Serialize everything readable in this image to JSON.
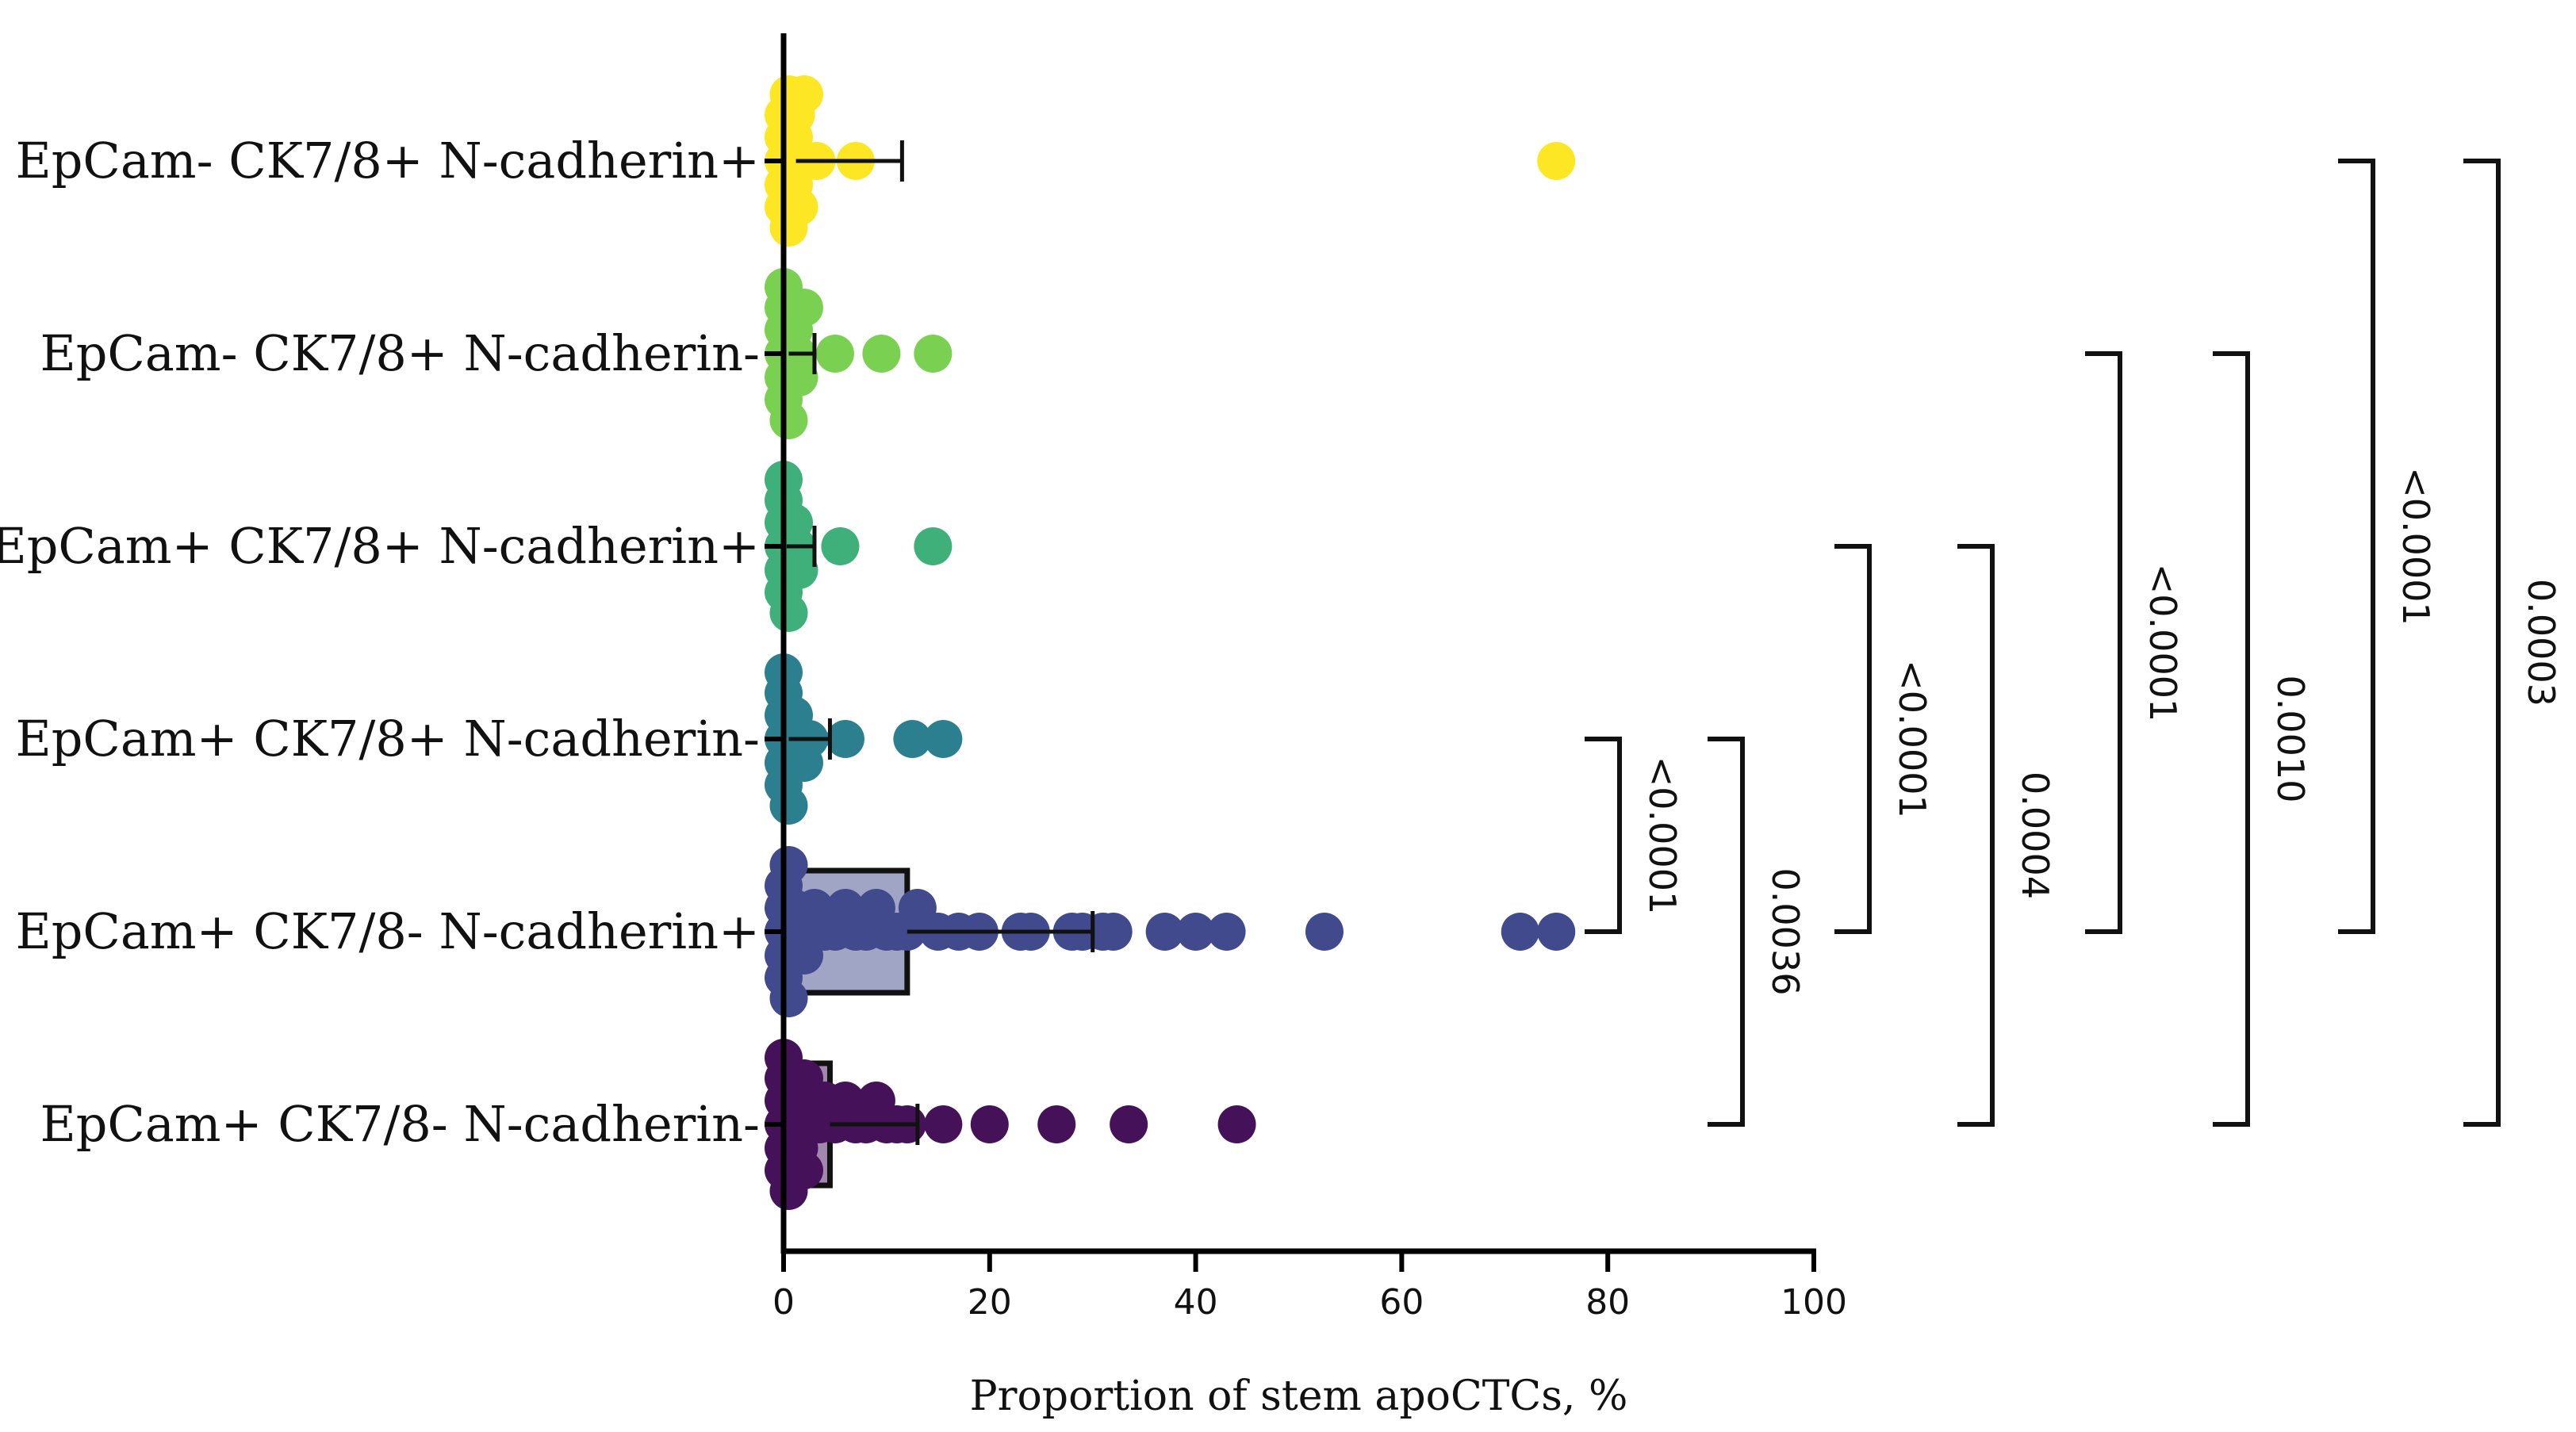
{
  "chart_data": {
    "type": "bar",
    "orientation": "horizontal",
    "xlabel": "Proportion of stem apoCTCs, %",
    "xlim": [
      0,
      100
    ],
    "xticks": [
      0,
      20,
      40,
      60,
      80,
      100
    ],
    "categories": [
      "EpCam- CK7/8+ N-cadherin+",
      "EpCam- CK7/8+ N-cadherin-",
      "EpCam+ CK7/8+ N-cadherin+",
      "EpCam+ CK7/8+ N-cadherin-",
      "EpCam+ CK7/8- N-cadherin+",
      "EpCam+ CK7/8- N-cadherin-"
    ],
    "colors": [
      "#FDE725",
      "#7AD151",
      "#3FB07A",
      "#2C7F8E",
      "#414A8C",
      "#45125A"
    ],
    "series": [
      {
        "name": "EpCam- CK7/8+ N-cadherin+",
        "mean": 1.2,
        "error": 11.5,
        "points": [
          0,
          0,
          0,
          0,
          0,
          0.5,
          0.5,
          0.8,
          1,
          1,
          1.2,
          1.5,
          2,
          3.2,
          7,
          75
        ]
      },
      {
        "name": "EpCam- CK7/8+ N-cadherin-",
        "mean": 0.5,
        "error": 3,
        "points": [
          0,
          0,
          0,
          0,
          0,
          0,
          0.5,
          0.5,
          1,
          1,
          1.5,
          2,
          5,
          9.5,
          14.5
        ]
      },
      {
        "name": "EpCam+ CK7/8+ N-cadherin+",
        "mean": 0.3,
        "error": 3,
        "points": [
          0,
          0,
          0,
          0,
          0,
          0,
          0.5,
          0.5,
          1,
          1,
          1.5,
          5.5,
          14.5
        ]
      },
      {
        "name": "EpCam+ CK7/8+ N-cadherin-",
        "mean": 0.5,
        "error": 4.5,
        "points": [
          0,
          0,
          0,
          0,
          0,
          0,
          0.5,
          0.5,
          1,
          1,
          2,
          2.5,
          6,
          12.5,
          15.5
        ]
      },
      {
        "name": "EpCam+ CK7/8- N-cadherin+",
        "mean": 12,
        "error": 30,
        "points": [
          0,
          0,
          0,
          0,
          0,
          0.5,
          0.5,
          1,
          1,
          2,
          3,
          3,
          4,
          5,
          6,
          7,
          8,
          9,
          10,
          11,
          12,
          13,
          15,
          17,
          19,
          23,
          24,
          28,
          29,
          31,
          32,
          37,
          40,
          43,
          52.5,
          71.5,
          75
        ]
      },
      {
        "name": "EpCam+ CK7/8- N-cadherin-",
        "mean": 4.5,
        "error": 13,
        "points": [
          0,
          0,
          0,
          0,
          0,
          0,
          0.5,
          0.5,
          1,
          1,
          1.5,
          2,
          2,
          2.5,
          3,
          3.5,
          4,
          5,
          6,
          7,
          8,
          9,
          10,
          11,
          12,
          15.5,
          20,
          26.5,
          33.5,
          44
        ]
      }
    ],
    "comparisons": [
      {
        "from": "EpCam+ CK7/8+ N-cadherin-",
        "to": "EpCam+ CK7/8- N-cadherin+",
        "p": "<0.0001"
      },
      {
        "from": "EpCam+ CK7/8+ N-cadherin-",
        "to": "EpCam+ CK7/8- N-cadherin-",
        "p": "0.0036"
      },
      {
        "from": "EpCam+ CK7/8+ N-cadherin+",
        "to": "EpCam+ CK7/8- N-cadherin+",
        "p": "<0.0001"
      },
      {
        "from": "EpCam+ CK7/8+ N-cadherin+",
        "to": "EpCam+ CK7/8- N-cadherin-",
        "p": "0.0004"
      },
      {
        "from": "EpCam- CK7/8+ N-cadherin-",
        "to": "EpCam+ CK7/8- N-cadherin+",
        "p": "<0.0001"
      },
      {
        "from": "EpCam- CK7/8+ N-cadherin-",
        "to": "EpCam+ CK7/8- N-cadherin-",
        "p": "0.0010"
      },
      {
        "from": "EpCam- CK7/8+ N-cadherin+",
        "to": "EpCam+ CK7/8- N-cadherin+",
        "p": "<0.0001"
      },
      {
        "from": "EpCam- CK7/8+ N-cadherin+",
        "to": "EpCam+ CK7/8- N-cadherin-",
        "p": "0.0003"
      }
    ]
  }
}
